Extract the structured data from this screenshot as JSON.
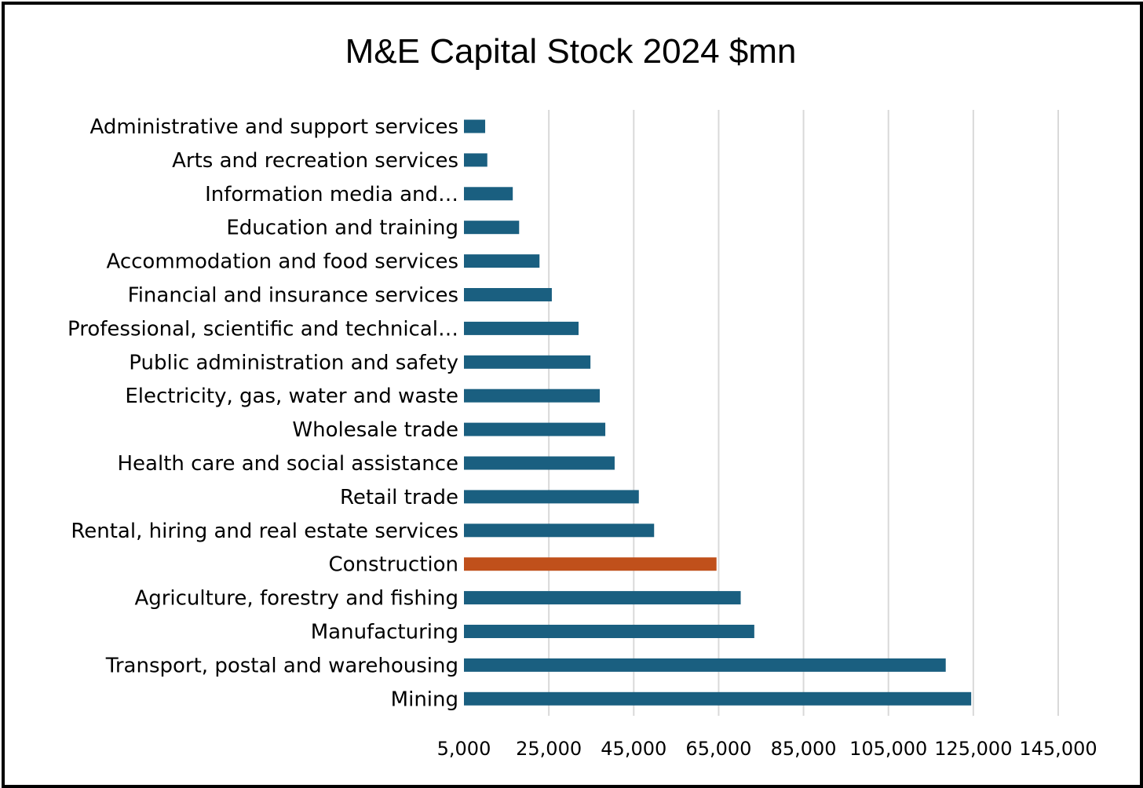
{
  "chart_data": {
    "type": "bar",
    "orientation": "horizontal",
    "title": "M&E Capital Stock 2024 $mn",
    "xlabel": "",
    "ylabel": "",
    "xlim": [
      5000,
      145000
    ],
    "x_ticks": [
      5000,
      25000,
      45000,
      65000,
      85000,
      105000,
      125000,
      145000
    ],
    "x_tick_labels": [
      "5,000",
      "25,000",
      "45,000",
      "65,000",
      "85,000",
      "105,000",
      "125,000",
      "145,000"
    ],
    "grid": true,
    "legend": "none",
    "categories": [
      "Administrative and support services",
      "Arts and recreation services",
      "Information media and…",
      "Education and training",
      "Accommodation and food services",
      "Financial and insurance services",
      "Professional, scientific and technical…",
      "Public administration and safety",
      "Electricity, gas, water and waste",
      "Wholesale trade",
      "Health care and social assistance",
      "Retail trade",
      "Rental, hiring and real estate services",
      "Construction",
      "Agriculture, forestry and fishing",
      "Manufacturing",
      "Transport, postal and warehousing",
      "Mining"
    ],
    "values": [
      10000,
      10500,
      16500,
      18000,
      22800,
      25700,
      32000,
      34800,
      37000,
      38300,
      40500,
      46200,
      49800,
      64500,
      70200,
      73400,
      118500,
      124500
    ],
    "colors": {
      "default": "#1a5f80",
      "highlight": "#c0501b",
      "highlight_category": "Construction",
      "grid": "#d9d9d9",
      "text": "#000000"
    }
  }
}
